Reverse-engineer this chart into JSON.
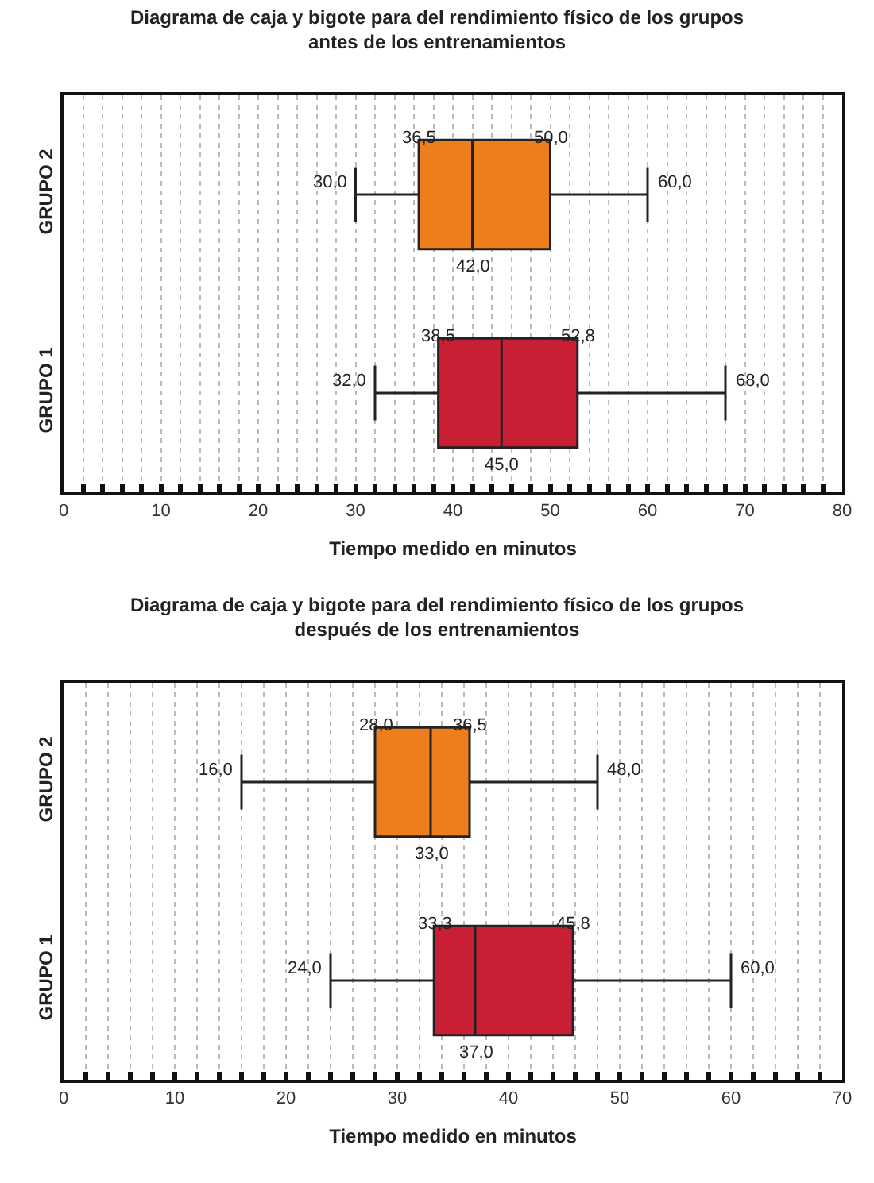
{
  "chart_data": [
    {
      "type": "box",
      "title": "Diagrama de caja y bigote para del rendimiento físico de los grupos\nantes de los entrenamientos",
      "xlabel": "Tiempo medido en minutos",
      "orientation": "horizontal",
      "categories": [
        "GRUPO 2",
        "GRUPO 1"
      ],
      "boxes": [
        {
          "low": 30.0,
          "q1": 36.5,
          "median": 42.0,
          "q3": 50.0,
          "high": 60.0
        },
        {
          "low": 32.0,
          "q1": 38.5,
          "median": 45.0,
          "q3": 52.8,
          "high": 68.0
        }
      ],
      "colors": [
        "#ee7d1d",
        "#c81f35"
      ],
      "value_labels": [
        [
          "30,0",
          "36,5",
          "42,0",
          "50,0",
          "60,0"
        ],
        [
          "32,0",
          "38,5",
          "45,0",
          "52,8",
          "68,0"
        ]
      ],
      "grid": "x",
      "xlim": [
        0,
        80
      ],
      "xticks": [
        0,
        {
          "value": 2,
          "label": null
        },
        {
          "value": 4,
          "label": null
        },
        {
          "value": 6,
          "label": null
        },
        {
          "value": 8,
          "label": null
        },
        10,
        {
          "value": 12,
          "label": null
        },
        {
          "value": 14,
          "label": null
        },
        {
          "value": 16,
          "label": null
        },
        {
          "value": 18,
          "label": null
        },
        20,
        {
          "value": 22,
          "label": null
        },
        {
          "value": 24,
          "label": null
        },
        {
          "value": 26,
          "label": null
        },
        {
          "value": 28,
          "label": null
        },
        30,
        {
          "value": 32,
          "label": null
        },
        {
          "value": 34,
          "label": null
        },
        {
          "value": 36,
          "label": null
        },
        {
          "value": 38,
          "label": null
        },
        40,
        {
          "value": 42,
          "label": null
        },
        {
          "value": 44,
          "label": null
        },
        {
          "value": 46,
          "label": null
        },
        {
          "value": 48,
          "label": null
        },
        50,
        {
          "value": 52,
          "label": null
        },
        {
          "value": 54,
          "label": null
        },
        {
          "value": 56,
          "label": null
        },
        {
          "value": 58,
          "label": null
        },
        60,
        {
          "value": 62,
          "label": null
        },
        {
          "value": 64,
          "label": null
        },
        {
          "value": 66,
          "label": null
        },
        {
          "value": 68,
          "label": null
        },
        70,
        {
          "value": 72,
          "label": null
        },
        {
          "value": 74,
          "label": null
        },
        {
          "value": 76,
          "label": null
        },
        {
          "value": 78,
          "label": null
        },
        80
      ]
    },
    {
      "type": "box",
      "title": "Diagrama de caja y bigote para del rendimiento físico de los grupos\ndespués de los entrenamientos",
      "xlabel": "Tiempo medido en minutos",
      "orientation": "horizontal",
      "categories": [
        "GRUPO 2",
        "GRUPO 1"
      ],
      "boxes": [
        {
          "low": 16.0,
          "q1": 28.0,
          "median": 33.0,
          "q3": 36.5,
          "high": 48.0
        },
        {
          "low": 24.0,
          "q1": 33.3,
          "median": 37.0,
          "q3": 45.8,
          "high": 60.0
        }
      ],
      "colors": [
        "#ee7d1d",
        "#c81f35"
      ],
      "value_labels": [
        [
          "16,0",
          "28,0",
          "33,0",
          "36,5",
          "48,0"
        ],
        [
          "24,0",
          "33,3",
          "37,0",
          "45,8",
          "60,0"
        ]
      ],
      "grid": "x",
      "xlim": [
        0,
        70
      ],
      "xticks": [
        0,
        {
          "value": 2,
          "label": null
        },
        {
          "value": 4,
          "label": null
        },
        {
          "value": 6,
          "label": null
        },
        {
          "value": 8,
          "label": null
        },
        10,
        {
          "value": 12,
          "label": null
        },
        {
          "value": 14,
          "label": null
        },
        {
          "value": 16,
          "label": null
        },
        {
          "value": 18,
          "label": null
        },
        20,
        {
          "value": 22,
          "label": null
        },
        {
          "value": 24,
          "label": null
        },
        {
          "value": 26,
          "label": null
        },
        {
          "value": 28,
          "label": null
        },
        30,
        {
          "value": 32,
          "label": null
        },
        {
          "value": 34,
          "label": null
        },
        {
          "value": 36,
          "label": null
        },
        {
          "value": 38,
          "label": null
        },
        40,
        {
          "value": 42,
          "label": null
        },
        {
          "value": 44,
          "label": null
        },
        {
          "value": 46,
          "label": null
        },
        {
          "value": 48,
          "label": null
        },
        50,
        {
          "value": 52,
          "label": null
        },
        {
          "value": 54,
          "label": null
        },
        {
          "value": 56,
          "label": null
        },
        {
          "value": 58,
          "label": null
        },
        60,
        {
          "value": 62,
          "label": null
        },
        {
          "value": 64,
          "label": null
        },
        {
          "value": 66,
          "label": null
        },
        {
          "value": 68,
          "label": null
        },
        70
      ]
    }
  ]
}
